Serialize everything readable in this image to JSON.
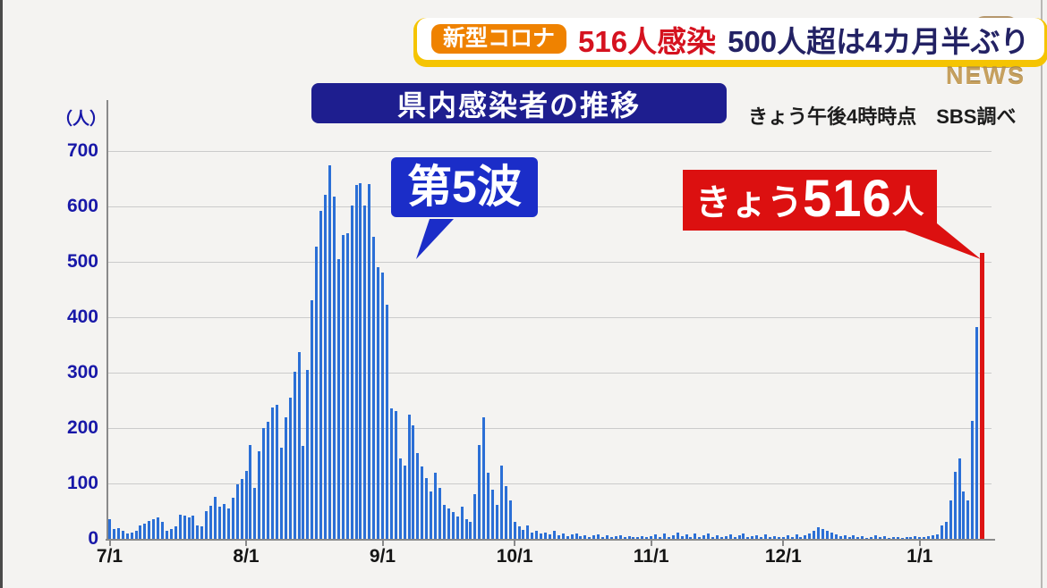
{
  "header": {
    "badge": "新型コロナ",
    "headline_infected": "516人感染",
    "headline_note": "500人超は4カ月半ぶり",
    "news_logo": "NEWS",
    "badge_color": "#ef8200",
    "underline_color": "#f5c402",
    "corner_color": "#b5976c"
  },
  "chart_header": {
    "title": "県内感染者の推移",
    "title_bg": "#1e1e8f",
    "note": "きょう午後4時時点　SBS調べ"
  },
  "annotations": {
    "wave_label": "第5波",
    "wave_bubble_color": "#1b2dc8",
    "today_prefix": "きょう",
    "today_value": "516",
    "today_suffix": "人",
    "today_bubble_color": "#dc1010"
  },
  "chart_data": {
    "type": "bar",
    "title": "県内感染者の推移",
    "unit_label": "（人）",
    "ylabel": "人",
    "ylim": [
      0,
      700
    ],
    "yticks": [
      0,
      100,
      200,
      300,
      400,
      500,
      600,
      700
    ],
    "xticks": [
      "7/1",
      "8/1",
      "9/1",
      "10/1",
      "11/1",
      "12/1",
      "1/1"
    ],
    "xtick_day_offsets": [
      0,
      31,
      62,
      92,
      123,
      153,
      184
    ],
    "grid": true,
    "bar_color": "#2b6fd6",
    "highlight_color": "#dd1414",
    "highlight_index": 198,
    "highlight_value": 516,
    "peak_value": 675,
    "values": [
      36,
      17,
      19,
      14,
      9,
      11,
      14,
      25,
      27,
      33,
      36,
      38,
      30,
      14,
      17,
      22,
      44,
      42,
      38,
      42,
      25,
      22,
      50,
      60,
      76,
      58,
      63,
      55,
      74,
      98,
      108,
      122,
      170,
      92,
      158,
      200,
      212,
      237,
      242,
      165,
      220,
      255,
      302,
      337,
      168,
      305,
      430,
      528,
      592,
      621,
      675,
      618,
      505,
      548,
      552,
      601,
      638,
      642,
      602,
      640,
      545,
      490,
      480,
      422,
      235,
      230,
      145,
      132,
      225,
      205,
      155,
      130,
      110,
      85,
      120,
      92,
      62,
      55,
      48,
      40,
      58,
      35,
      30,
      80,
      170,
      220,
      120,
      88,
      62,
      132,
      95,
      70,
      30,
      22,
      16,
      24,
      12,
      15,
      9,
      12,
      8,
      14,
      6,
      9,
      5,
      8,
      10,
      5,
      7,
      4,
      6,
      8,
      4,
      6,
      3,
      5,
      7,
      3,
      5,
      4,
      3,
      5,
      4,
      5,
      8,
      4,
      9,
      3,
      6,
      12,
      5,
      8,
      4,
      10,
      3,
      6,
      9,
      4,
      7,
      3,
      5,
      8,
      4,
      6,
      10,
      3,
      5,
      7,
      4,
      8,
      3,
      5,
      4,
      4,
      6,
      3,
      8,
      4,
      6,
      10,
      14,
      21,
      18,
      15,
      11,
      8,
      5,
      7,
      4,
      6,
      3,
      5,
      2,
      4,
      6,
      3,
      5,
      2,
      4,
      3,
      2,
      4,
      3,
      5,
      4,
      3,
      5,
      6,
      8,
      24,
      30,
      70,
      121,
      145,
      86,
      70,
      213,
      383,
      516
    ]
  }
}
